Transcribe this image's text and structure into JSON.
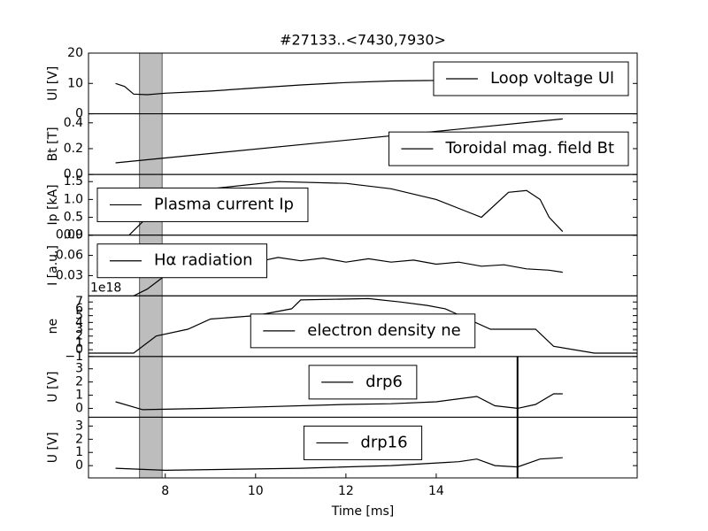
{
  "chart_data": [
    {
      "type": "line",
      "title": "#27133..<7430,7930>",
      "ylabel": "Ul [V]",
      "xlim": [
        6.3,
        18.45
      ],
      "ylim": [
        0,
        20
      ],
      "yticks": [
        0,
        10,
        20
      ],
      "span": [
        7.43,
        7.93
      ],
      "legend": "upper right",
      "x": [
        6.9,
        7.1,
        7.3,
        7.6,
        8,
        9,
        10,
        11,
        12,
        13,
        14,
        15,
        16,
        16.8
      ],
      "series": [
        {
          "name": "Loop voltage Ul",
          "color": "#000000",
          "values": [
            10,
            9,
            6.5,
            6.3,
            6.8,
            7.5,
            8.5,
            9.5,
            10.3,
            10.8,
            11,
            11.5,
            12,
            12.2
          ]
        }
      ]
    },
    {
      "type": "line",
      "ylabel": "Bt [T]",
      "xlim": [
        6.3,
        18.45
      ],
      "ylim": [
        0,
        0.47
      ],
      "yticks": [
        {
          "value": 0,
          "label": "0.0"
        },
        0.2,
        0.4
      ],
      "span": [
        7.43,
        7.93
      ],
      "legend": "lower right",
      "x": [
        6.9,
        16.8
      ],
      "series": [
        {
          "name": "Toroidal mag. field Bt",
          "color": "#000000",
          "values": [
            0.09,
            0.43
          ]
        }
      ]
    },
    {
      "type": "line",
      "ylabel": "Ip [kA]",
      "xlim": [
        6.3,
        18.45
      ],
      "ylim": [
        0,
        1.7
      ],
      "yticks": [
        {
          "value": 0,
          "label": "0.0"
        },
        0.5,
        {
          "value": 1,
          "label": "1.0"
        },
        1.5
      ],
      "span": [
        7.43,
        7.93
      ],
      "legend": "center left",
      "x": [
        7.2,
        7.6,
        8,
        9,
        10.5,
        12,
        13,
        14,
        14.6,
        15,
        15.6,
        16,
        16.3,
        16.5,
        16.8
      ],
      "series": [
        {
          "name": "Plasma current Ip",
          "color": "#000000",
          "values": [
            0,
            0.5,
            1.0,
            1.3,
            1.5,
            1.45,
            1.3,
            1.0,
            0.7,
            0.5,
            1.2,
            1.25,
            1.0,
            0.5,
            0.1
          ]
        }
      ]
    },
    {
      "type": "line",
      "ylabel": "I [a.u.]",
      "xlim": [
        6.3,
        18.45
      ],
      "ylim": [
        0,
        0.09
      ],
      "yticks": [
        0.03,
        0.06,
        0.09
      ],
      "span": [
        7.43,
        7.93
      ],
      "legend": "upper left",
      "x": [
        7.3,
        7.6,
        7.8,
        8.0,
        8.5,
        9,
        9.5,
        10,
        10.5,
        11,
        11.5,
        12,
        12.5,
        13,
        13.5,
        14,
        14.5,
        15,
        15.5,
        16,
        16.5,
        16.8
      ],
      "series": [
        {
          "name": "Hα radiation",
          "color": "#000000",
          "values": [
            0.0,
            0.01,
            0.02,
            0.03,
            0.05,
            0.048,
            0.055,
            0.05,
            0.057,
            0.052,
            0.056,
            0.05,
            0.055,
            0.05,
            0.053,
            0.047,
            0.05,
            0.044,
            0.046,
            0.04,
            0.038,
            0.035
          ]
        }
      ]
    },
    {
      "type": "line",
      "ylabel": "ne",
      "offset_label": "1e18",
      "xlim": [
        6.3,
        18.45
      ],
      "ylim": [
        -1,
        7.9
      ],
      "yticks": [
        {
          "value": -1,
          "label": "−1"
        },
        0,
        1,
        2,
        3,
        4,
        5,
        6,
        7
      ],
      "span": [
        7.43,
        7.93
      ],
      "legend": "lower center",
      "x": [
        6.3,
        7.3,
        7.8,
        8.5,
        9,
        10,
        10.8,
        11,
        12.5,
        13.2,
        13.8,
        14.2,
        15.2,
        16.2,
        16.6,
        17.5,
        18.45
      ],
      "series": [
        {
          "name": "electron density ne",
          "color": "#000000",
          "values": [
            -0.5,
            -0.5,
            2,
            3,
            4.5,
            5,
            6,
            7.3,
            7.5,
            7,
            6.5,
            6,
            3,
            3,
            0.5,
            -0.5,
            -0.5
          ]
        }
      ]
    },
    {
      "type": "line",
      "ylabel": "U [V]",
      "xlim": [
        6.3,
        18.45
      ],
      "ylim": [
        -0.67,
        3.93
      ],
      "yticks": [
        0,
        1,
        2,
        3
      ],
      "span": [
        7.43,
        7.93
      ],
      "vline": 15.8,
      "legend": "upper center",
      "x": [
        6.9,
        7.5,
        9,
        12,
        13,
        14,
        14.9,
        15.3,
        15.8,
        16.2,
        16.6,
        16.8
      ],
      "series": [
        {
          "name": "drp6",
          "color": "#000000",
          "values": [
            0.5,
            -0.1,
            0,
            0.3,
            0.35,
            0.5,
            0.9,
            0.2,
            0,
            0.3,
            1.1,
            1.1
          ]
        }
      ]
    },
    {
      "type": "line",
      "ylabel": "U [V]",
      "xlabel": "Time [ms]",
      "xlim": [
        6.3,
        18.45
      ],
      "xticks": [
        8,
        10,
        12,
        14
      ],
      "ylim": [
        -0.93,
        3.67
      ],
      "yticks": [
        0,
        1,
        2,
        3
      ],
      "span": [
        7.43,
        7.93
      ],
      "vline": 15.8,
      "legend": "upper center",
      "x": [
        6.9,
        8,
        11,
        13,
        14.5,
        14.9,
        15.3,
        15.8,
        16.3,
        16.8
      ],
      "series": [
        {
          "name": "drp16",
          "color": "#000000",
          "values": [
            -0.2,
            -0.35,
            -0.2,
            0,
            0.3,
            0.5,
            0,
            -0.1,
            0.5,
            0.6
          ]
        }
      ]
    }
  ]
}
